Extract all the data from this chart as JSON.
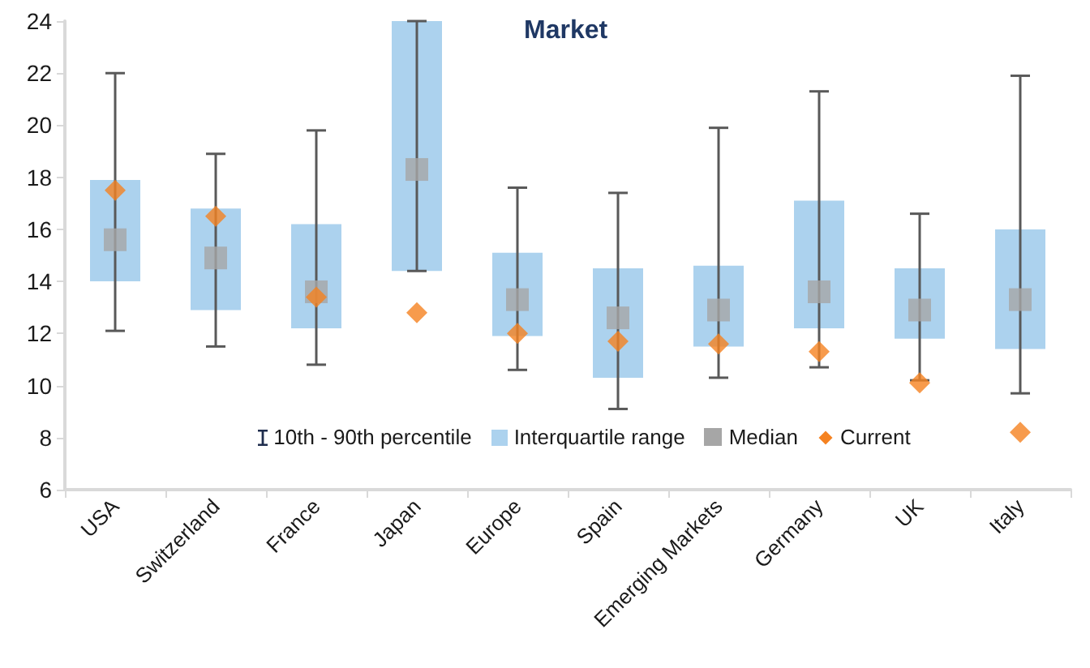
{
  "chart_data": {
    "type": "box",
    "title": "Market",
    "categories": [
      "USA",
      "Switzerland",
      "France",
      "Japan",
      "Europe",
      "Spain",
      "Emerging Markets",
      "Germany",
      "UK",
      "Italy"
    ],
    "series": [
      {
        "type": "box",
        "name": "Interquartile range",
        "color": "#acd2ee",
        "boxes": [
          {
            "low": 12.1,
            "q1": 14,
            "median": 15.6,
            "q3": 17.9,
            "high": 22
          },
          {
            "low": 11.5,
            "q1": 12.9,
            "median": 14.9,
            "q3": 16.8,
            "high": 18.9
          },
          {
            "low": 10.8,
            "q1": 12.2,
            "median": 13.6,
            "q3": 16.2,
            "high": 19.8
          },
          {
            "low": 14.4,
            "q1": 14.4,
            "median": 18.3,
            "q3": 24,
            "high": 24
          },
          {
            "low": 10.6,
            "q1": 11.9,
            "median": 13.3,
            "q3": 15.1,
            "high": 17.6
          },
          {
            "low": 9.1,
            "q1": 10.3,
            "median": 12.6,
            "q3": 14.5,
            "high": 17.4
          },
          {
            "low": 10.3,
            "q1": 11.5,
            "median": 12.9,
            "q3": 14.6,
            "high": 19.9
          },
          {
            "low": 10.7,
            "q1": 12.2,
            "median": 13.6,
            "q3": 17.1,
            "high": 21.3
          },
          {
            "low": 10.2,
            "q1": 11.8,
            "median": 12.9,
            "q3": 14.5,
            "high": 16.6
          },
          {
            "low": 9.7,
            "q1": 11.4,
            "median": 13.3,
            "q3": 16,
            "high": 21.9
          }
        ]
      },
      {
        "type": "scatter",
        "name": "Current",
        "color": "#f58220",
        "marker": "diamond",
        "values": [
          17.5,
          16.5,
          13.4,
          12.8,
          12.0,
          11.7,
          11.6,
          11.3,
          10.1,
          8.2
        ]
      }
    ],
    "annotations": [
      "10th - 90th percentile",
      "Median"
    ],
    "ylim": [
      6,
      24
    ],
    "yticks": [
      6,
      8,
      10,
      12,
      14,
      16,
      18,
      20,
      22,
      24
    ],
    "grid": false,
    "legend": "bottom"
  }
}
